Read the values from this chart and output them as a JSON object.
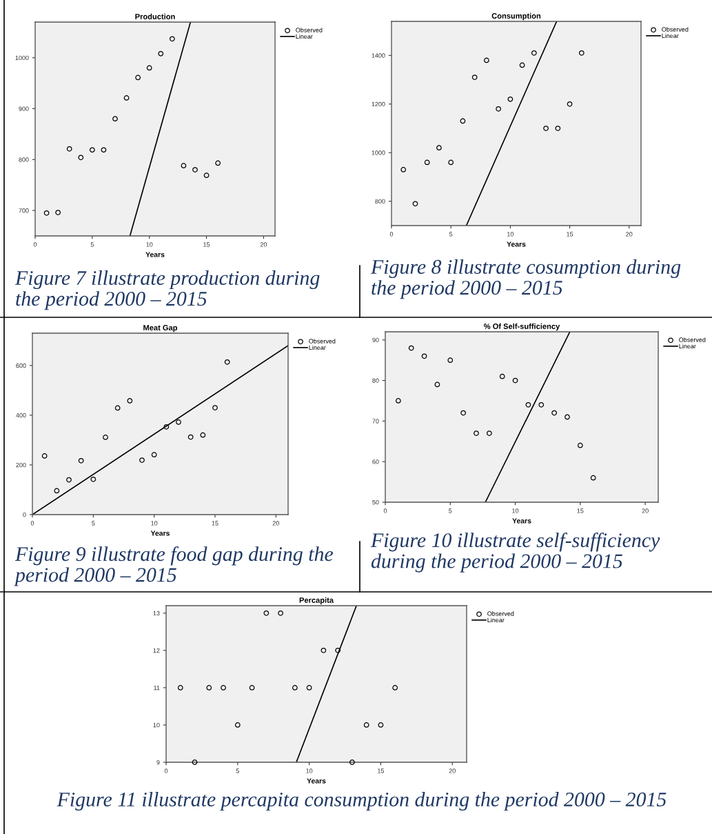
{
  "chart_data": [
    {
      "type": "scatter",
      "title": "Production",
      "xlabel": "Years",
      "xlim": [
        0,
        21
      ],
      "xticks": [
        0,
        5,
        10,
        15,
        20
      ],
      "ylim": [
        650,
        1070
      ],
      "yticks": [
        700,
        800,
        900,
        1000
      ],
      "grid": false,
      "legend": "top right",
      "series": [
        {
          "name": "Observed",
          "marker": "circle",
          "color": "#000000",
          "x": [
            1,
            2,
            3,
            4,
            5,
            6,
            7,
            8,
            9,
            10,
            11,
            12,
            13,
            14,
            15,
            16
          ],
          "values": [
            695,
            696,
            821,
            804,
            819,
            819,
            880,
            921,
            961,
            980,
            1008,
            1037,
            788,
            780,
            769,
            793
          ]
        },
        {
          "name": "Linear",
          "type": "line",
          "marker": "none",
          "color": "#000000",
          "x": [
            8.3,
            13.6
          ],
          "values": [
            650,
            1070
          ]
        }
      ],
      "annotations": [
        "Figure 7 illustrate production during the period 2000 – 2015"
      ]
    },
    {
      "type": "scatter",
      "title": "Consumption",
      "xlabel": "Years",
      "xlim": [
        0,
        21
      ],
      "xticks": [
        0,
        5,
        10,
        15,
        20
      ],
      "ylim": [
        700,
        1540
      ],
      "yticks": [
        800,
        1000,
        1200,
        1400
      ],
      "grid": false,
      "legend": "top right",
      "series": [
        {
          "name": "Observed",
          "marker": "circle",
          "color": "#000000",
          "x": [
            1,
            2,
            3,
            4,
            5,
            6,
            7,
            8,
            9,
            10,
            11,
            12,
            13,
            14,
            15,
            16
          ],
          "values": [
            930,
            790,
            960,
            1020,
            960,
            1130,
            1310,
            1380,
            1180,
            1220,
            1360,
            1410,
            1100,
            1100,
            1200,
            1410
          ]
        },
        {
          "name": "Linear",
          "type": "line",
          "marker": "none",
          "color": "#000000",
          "x": [
            6.3,
            13.9
          ],
          "values": [
            700,
            1540
          ]
        }
      ],
      "annotations": [
        "Figure 8 illustrate cosumption during the period 2000 – 2015"
      ]
    },
    {
      "type": "scatter",
      "title": "Meat Gap",
      "xlabel": "Years",
      "xlim": [
        0,
        21
      ],
      "xticks": [
        0,
        5,
        10,
        15,
        20
      ],
      "ylim": [
        0,
        730
      ],
      "yticks": [
        0,
        200,
        400,
        600
      ],
      "grid": false,
      "legend": "top right",
      "series": [
        {
          "name": "Observed",
          "marker": "circle",
          "color": "#000000",
          "x": [
            1,
            2,
            3,
            4,
            5,
            6,
            7,
            8,
            9,
            10,
            11,
            12,
            13,
            14,
            15,
            16
          ],
          "values": [
            236,
            96,
            140,
            217,
            142,
            311,
            429,
            458,
            219,
            241,
            353,
            372,
            312,
            320,
            430,
            614
          ]
        },
        {
          "name": "Linear",
          "type": "line",
          "marker": "none",
          "color": "#000000",
          "x": [
            0,
            21
          ],
          "values": [
            0,
            680
          ]
        }
      ],
      "annotations": [
        "Figure 9 illustrate food gap during the period 2000 – 2015"
      ]
    },
    {
      "type": "scatter",
      "title": "% Of Self-sufficiency",
      "xlabel": "Years",
      "xlim": [
        0,
        21
      ],
      "xticks": [
        0,
        5,
        10,
        15,
        20
      ],
      "ylim": [
        50,
        92
      ],
      "yticks": [
        50,
        60,
        70,
        80,
        90
      ],
      "grid": false,
      "legend": "top right",
      "series": [
        {
          "name": "Observed",
          "marker": "circle",
          "color": "#000000",
          "x": [
            1,
            2,
            3,
            4,
            5,
            6,
            7,
            8,
            9,
            10,
            11,
            12,
            13,
            14,
            15,
            16
          ],
          "values": [
            75,
            88,
            86,
            79,
            85,
            72,
            67,
            67,
            81,
            80,
            74,
            74,
            72,
            71,
            64,
            56
          ]
        },
        {
          "name": "Linear",
          "type": "line",
          "marker": "none",
          "color": "#000000",
          "x": [
            7.7,
            14.2
          ],
          "values": [
            50,
            92
          ]
        }
      ],
      "annotations": [
        "Figure 10 illustrate self-sufficiency during the period 2000 – 2015"
      ]
    },
    {
      "type": "scatter",
      "title": "Percapita",
      "xlabel": "Years",
      "xlim": [
        0,
        21
      ],
      "xticks": [
        0,
        5,
        10,
        15,
        20
      ],
      "ylim": [
        9,
        13.2
      ],
      "yticks": [
        9,
        10,
        11,
        12,
        13
      ],
      "grid": false,
      "legend": "top right",
      "series": [
        {
          "name": "Observed",
          "marker": "circle",
          "color": "#000000",
          "x": [
            1,
            2,
            3,
            4,
            5,
            6,
            7,
            8,
            9,
            10,
            11,
            12,
            13,
            14,
            15,
            16
          ],
          "values": [
            11,
            9,
            11,
            11,
            10,
            11,
            13,
            13,
            11,
            11,
            12,
            12,
            9,
            10,
            10,
            11
          ]
        },
        {
          "name": "Linear",
          "type": "line",
          "marker": "none",
          "color": "#000000",
          "x": [
            9.1,
            13.3
          ],
          "values": [
            9,
            13.2
          ]
        }
      ],
      "annotations": [
        "Figure 11 illustrate percapita consumption during the period 2000 – 2015"
      ]
    }
  ]
}
